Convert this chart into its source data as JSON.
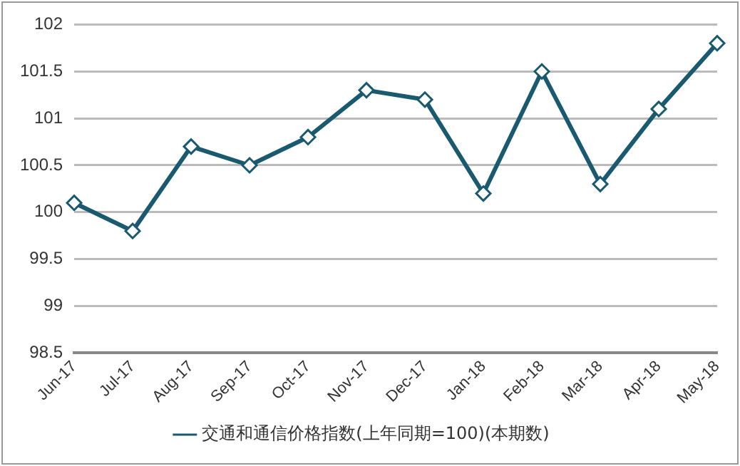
{
  "chart_data": {
    "type": "line",
    "categories": [
      "Jun-17",
      "Jul-17",
      "Aug-17",
      "Sep-17",
      "Oct-17",
      "Nov-17",
      "Dec-17",
      "Jan-18",
      "Feb-18",
      "Mar-18",
      "Apr-18",
      "May-18"
    ],
    "series": [
      {
        "name": "交通和通信价格指数(上年同期=100)(本期数)",
        "color": "#1a5a6e",
        "values": [
          100.1,
          99.8,
          100.7,
          100.5,
          100.8,
          101.3,
          101.2,
          100.2,
          101.5,
          100.3,
          101.1,
          101.8
        ]
      }
    ],
    "ylim": [
      98.5,
      102
    ],
    "yticks": [
      98.5,
      99,
      99.5,
      100,
      100.5,
      101,
      101.5,
      102
    ],
    "grid": "y",
    "legend": "bottom",
    "marker": "diamond",
    "line_style": "solid"
  }
}
